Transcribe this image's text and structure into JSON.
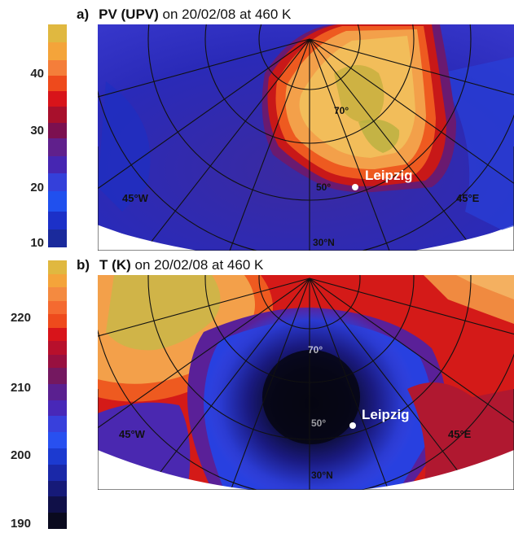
{
  "panel_a": {
    "letter": "a)",
    "quantity": "PV (UPV)",
    "rest": " on 20/02/08 at 460 K",
    "ticks": [
      "40",
      "30",
      "20",
      "10"
    ],
    "city": "Leipzig",
    "lat_labels": [
      "70°",
      "50°",
      "30°N"
    ],
    "lon_labels": [
      "45°W",
      "45°E"
    ]
  },
  "panel_b": {
    "letter": "b)",
    "quantity": "T (K)",
    "rest": " on 20/02/08 at 460 K",
    "ticks": [
      "220",
      "210",
      "200",
      "190"
    ],
    "city": "Leipzig",
    "lat_labels": [
      "70°",
      "50°",
      "30°N"
    ],
    "lon_labels": [
      "45°W",
      "45°E"
    ]
  },
  "colorbar_colors": [
    "#1a0830",
    "#1e1a8c",
    "#1a32d6",
    "#3c50f0",
    "#4a2aa8",
    "#5c1c8c",
    "#7a1a6a",
    "#a0143a",
    "#d21a14",
    "#ee3a10",
    "#f25a1a",
    "#f47a3a",
    "#f59a50",
    "#f6b850",
    "#f0c040",
    "#e8c830"
  ]
}
